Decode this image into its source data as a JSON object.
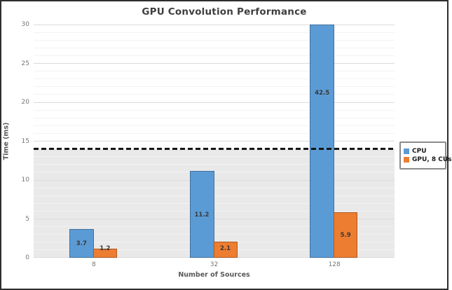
{
  "chart_data": {
    "type": "bar",
    "title": "GPU Convolution Performance",
    "xlabel": "Number of Sources",
    "ylabel": "Time (ms)",
    "categories": [
      "8",
      "32",
      "128"
    ],
    "series": [
      {
        "name": "CPU",
        "color": "#5B9BD5",
        "border_color": "#41719C",
        "values": [
          3.7,
          11.2,
          42.5
        ]
      },
      {
        "name": "GPU, 8 CUs",
        "color": "#ED7D31",
        "border_color": "#AE5A21",
        "values": [
          1.2,
          2.1,
          5.9
        ]
      }
    ],
    "ylim": [
      0,
      30
    ],
    "yticks": [
      0,
      5,
      10,
      15,
      20,
      25,
      30
    ],
    "minor_gridline_step": 1,
    "threshold_line": {
      "value": 14,
      "style": "dashed",
      "color": "#151515"
    },
    "shaded_band": {
      "from": 0,
      "to": 14,
      "color": "#e9e9e9"
    },
    "legend_position": "right",
    "grid": true,
    "bars_clipped_at_ymax": [
      "CPU @ 128"
    ]
  }
}
